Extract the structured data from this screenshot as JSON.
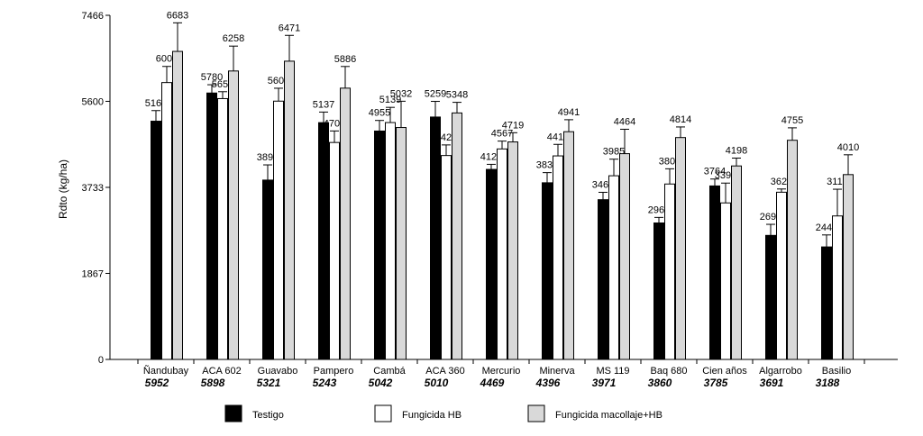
{
  "chart_data": {
    "type": "bar",
    "ylabel": "Rdto (kg/ha)",
    "ylim": [
      0,
      7466
    ],
    "yticks": [
      0,
      1867,
      3733,
      5600,
      7466
    ],
    "categories": [
      "Ñandubay",
      "ACA 602",
      "Guavabo",
      "Pampero",
      "Cambá",
      "ACA 360",
      "Mercurio",
      "Minerva",
      "MS 119",
      "Baq 680",
      "Cien años",
      "Algarrobo",
      "Basilio"
    ],
    "category_means": [
      "5952",
      "5898",
      "5321",
      "5243",
      "5042",
      "5010",
      "4469",
      "4396",
      "3971",
      "3860",
      "3785",
      "3691",
      "3188"
    ],
    "series": [
      {
        "name": "Testigo",
        "color": "#000000",
        "values": [
          5169,
          5780,
          3891,
          5137,
          4955,
          5259,
          4123,
          3833,
          3466,
          2961,
          3764,
          2691,
          2441
        ],
        "errors": [
          230,
          180,
          330,
          230,
          230,
          340,
          110,
          220,
          160,
          120,
          150,
          240,
          260
        ]
      },
      {
        "name": "Fungicida HB",
        "color": "#ffffff",
        "values": [
          6007,
          5659,
          5604,
          4707,
          5139,
          4424,
          4567,
          4416,
          3985,
          3806,
          3396,
          3628,
          3113
        ],
        "errors": [
          350,
          150,
          280,
          250,
          330,
          230,
          170,
          250,
          360,
          330,
          430,
          70,
          580
        ]
      },
      {
        "name": "Fungicida macollaje+HB",
        "color": "#d9d9d9",
        "values": [
          6683,
          6258,
          6471,
          5886,
          5032,
          5348,
          4719,
          4941,
          4464,
          4814,
          4198,
          4755,
          4010
        ],
        "errors": [
          620,
          540,
          560,
          470,
          570,
          230,
          200,
          260,
          530,
          230,
          170,
          270,
          430
        ]
      }
    ],
    "grid": false,
    "legend": "bottom"
  }
}
